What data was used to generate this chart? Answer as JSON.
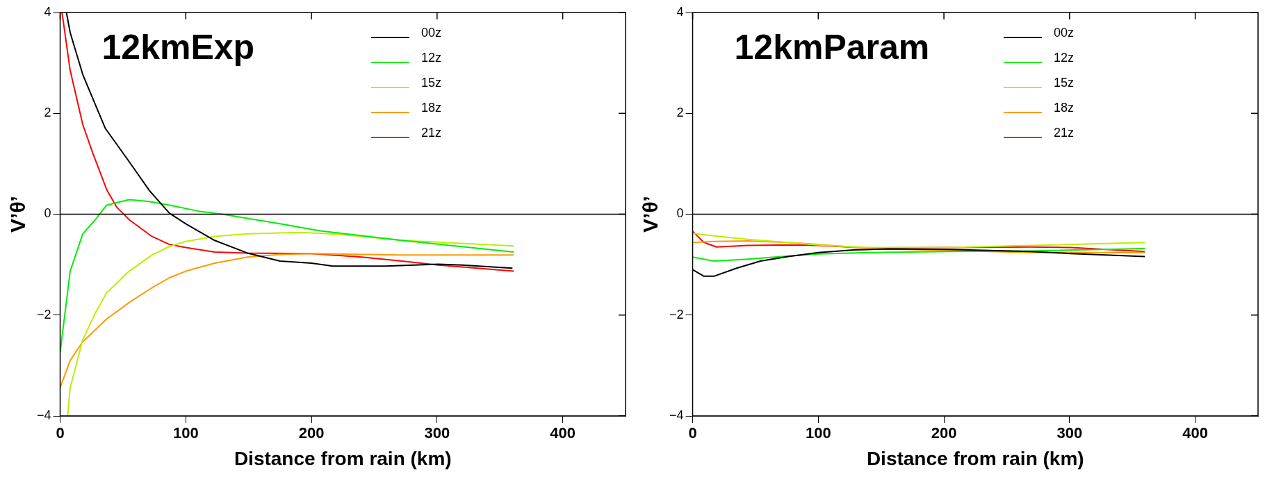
{
  "chart_data": [
    {
      "type": "line",
      "title": "12kmExp",
      "xlabel": "Distance from rain (km)",
      "ylabel": "V’θ’",
      "xlim": [
        0,
        450
      ],
      "ylim": [
        -4,
        4
      ],
      "xticks": [
        0,
        100,
        200,
        300,
        400
      ],
      "yticks": [
        -4,
        -2,
        0,
        2,
        4
      ],
      "grid": false,
      "legend": "top right",
      "marker": "none",
      "line_style": "solid",
      "ref_lines": [
        {
          "axis": "y",
          "value": 0,
          "color": "#000000"
        }
      ],
      "series": [
        {
          "name": "00z",
          "color": "#000000",
          "x": [
            5,
            8,
            18,
            36,
            55,
            71,
            87,
            100,
            123,
            149,
            175,
            200,
            217,
            259,
            301,
            320,
            360
          ],
          "values": [
            4.0,
            3.6,
            2.77,
            1.7,
            1.04,
            0.47,
            0.02,
            -0.19,
            -0.52,
            -0.77,
            -0.93,
            -0.97,
            -1.03,
            -1.03,
            -0.99,
            -1.01,
            -1.07
          ]
        },
        {
          "name": "12z",
          "color": "#00ee00",
          "x": [
            0,
            8,
            18,
            28,
            37,
            55,
            71,
            87,
            110,
            129,
            175,
            207,
            272,
            361
          ],
          "values": [
            -2.74,
            -1.13,
            -0.39,
            -0.11,
            0.18,
            0.29,
            0.25,
            0.18,
            0.06,
            0,
            -0.19,
            -0.33,
            -0.52,
            -0.75
          ]
        },
        {
          "name": "15z",
          "color": "#bbee00",
          "x": [
            6,
            8,
            18,
            28,
            37,
            55,
            73,
            87,
            100,
            123,
            149,
            191,
            223,
            272,
            361
          ],
          "values": [
            -4.0,
            -3.44,
            -2.49,
            -1.96,
            -1.56,
            -1.13,
            -0.81,
            -0.64,
            -0.54,
            -0.44,
            -0.39,
            -0.36,
            -0.4,
            -0.52,
            -0.63
          ]
        },
        {
          "name": "18z",
          "color": "#ff9900",
          "x": [
            0,
            8,
            18,
            37,
            55,
            73,
            87,
            100,
            123,
            149,
            175,
            200,
            272,
            361
          ],
          "values": [
            -3.44,
            -2.9,
            -2.53,
            -2.08,
            -1.75,
            -1.46,
            -1.26,
            -1.13,
            -0.97,
            -0.85,
            -0.8,
            -0.78,
            -0.81,
            -0.81
          ]
        },
        {
          "name": "21z",
          "color": "#ff0000",
          "x": [
            1.5,
            8,
            18,
            26,
            37,
            45,
            55,
            73,
            87,
            100,
            123,
            149,
            200,
            240,
            272,
            301,
            361
          ],
          "values": [
            4.0,
            2.85,
            1.78,
            1.21,
            0.49,
            0.14,
            -0.11,
            -0.44,
            -0.6,
            -0.66,
            -0.75,
            -0.77,
            -0.78,
            -0.85,
            -0.93,
            -1.01,
            -1.13
          ]
        }
      ]
    },
    {
      "type": "line",
      "title": "12kmParam",
      "xlabel": "Distance from rain (km)",
      "ylabel": "V’θ’",
      "xlim": [
        0,
        450
      ],
      "ylim": [
        -4,
        4
      ],
      "xticks": [
        0,
        100,
        200,
        300,
        400
      ],
      "yticks": [
        -4,
        -2,
        0,
        2,
        4
      ],
      "grid": false,
      "legend": "top right",
      "marker": "none",
      "line_style": "solid",
      "ref_lines": [
        {
          "axis": "y",
          "value": 0,
          "color": "#000000"
        }
      ],
      "series": [
        {
          "name": "00z",
          "color": "#000000",
          "x": [
            0,
            9,
            17,
            35,
            54,
            76,
            100,
            128,
            156,
            204,
            269,
            301,
            360
          ],
          "values": [
            -1.1,
            -1.23,
            -1.23,
            -1.07,
            -0.93,
            -0.84,
            -0.76,
            -0.71,
            -0.69,
            -0.7,
            -0.74,
            -0.78,
            -0.84
          ]
        },
        {
          "name": "12z",
          "color": "#00ee00",
          "x": [
            0,
            17,
            44,
            76,
            100,
            140,
            204,
            269,
            360
          ],
          "values": [
            -0.85,
            -0.93,
            -0.89,
            -0.83,
            -0.79,
            -0.76,
            -0.74,
            -0.73,
            -0.68
          ]
        },
        {
          "name": "15z",
          "color": "#bbee00",
          "x": [
            0,
            17,
            44,
            76,
            100,
            140,
            204,
            269,
            360
          ],
          "values": [
            -0.38,
            -0.43,
            -0.5,
            -0.56,
            -0.61,
            -0.66,
            -0.66,
            -0.62,
            -0.56
          ]
        },
        {
          "name": "18z",
          "color": "#ff9900",
          "x": [
            0,
            17,
            44,
            76,
            100,
            140,
            204,
            269,
            360
          ],
          "values": [
            -0.56,
            -0.54,
            -0.53,
            -0.56,
            -0.6,
            -0.68,
            -0.72,
            -0.76,
            -0.76
          ]
        },
        {
          "name": "21z",
          "color": "#ff0000",
          "x": [
            0,
            9,
            19,
            44,
            76,
            100,
            140,
            204,
            269,
            301,
            360
          ],
          "values": [
            -0.34,
            -0.56,
            -0.65,
            -0.62,
            -0.61,
            -0.62,
            -0.67,
            -0.66,
            -0.65,
            -0.66,
            -0.74
          ]
        }
      ]
    }
  ]
}
